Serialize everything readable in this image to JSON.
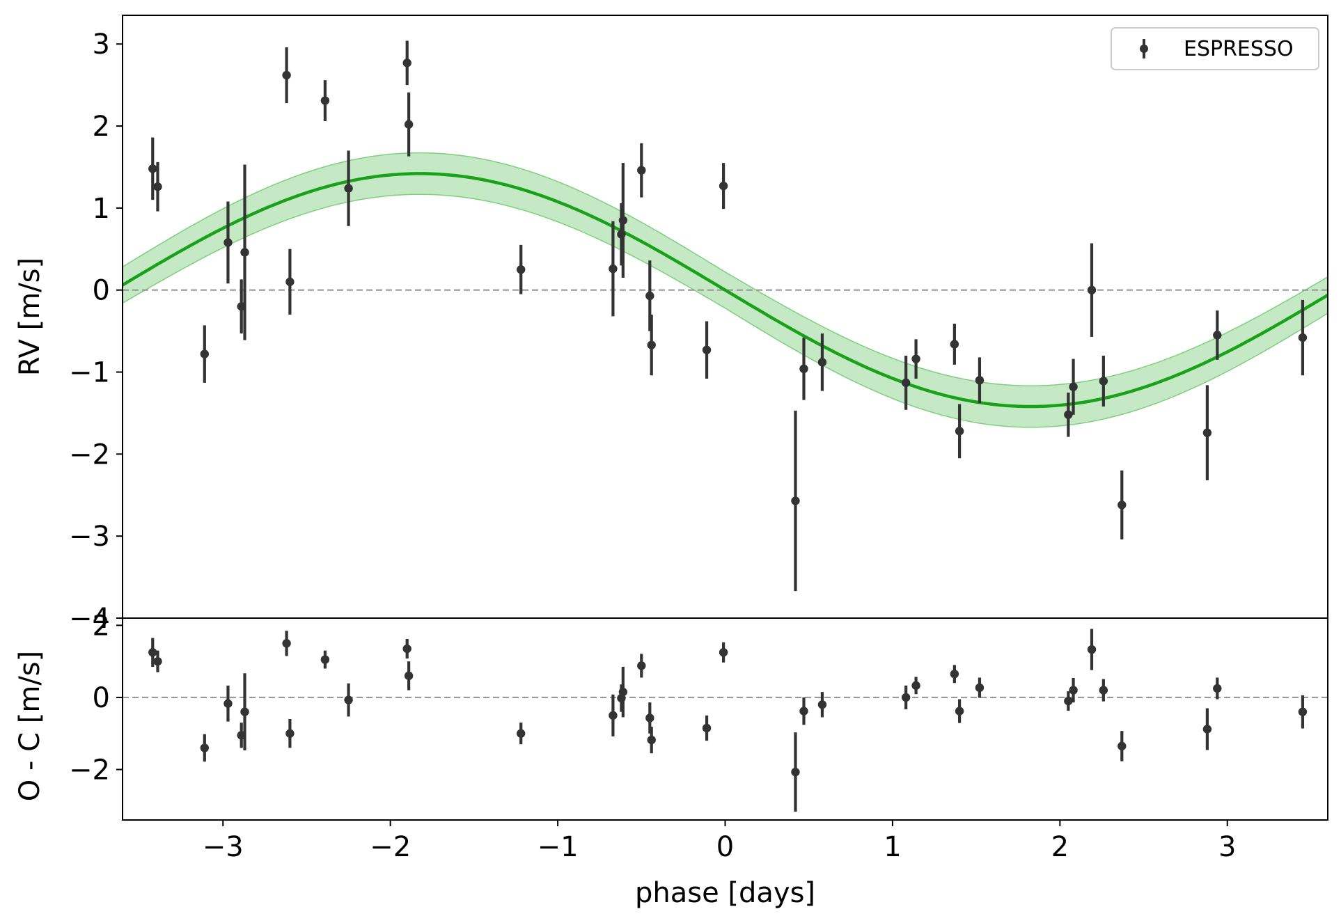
{
  "chart_data": [
    {
      "type": "scatter",
      "panel": "top",
      "ylabel": "RV [m/s]",
      "xlabel": "",
      "xlim": [
        -3.6,
        3.6
      ],
      "ylim": [
        -4,
        3.35
      ],
      "yticks": [
        3,
        2,
        1,
        0,
        -1,
        -2,
        -3,
        -4
      ],
      "ytick_labels": [
        "3",
        "2",
        "1",
        "0",
        "−1",
        "−2",
        "−3",
        "−4"
      ],
      "grid": false,
      "zero_line": true,
      "legend": {
        "position": "top-right",
        "entries": [
          "ESPRESSO"
        ]
      },
      "model": {
        "amplitude": 1.42,
        "period": 7.3,
        "band_halfwidth": 0.22,
        "color": "#1aa11a",
        "band_color": "#9fd99f"
      },
      "series": [
        {
          "name": "ESPRESSO",
          "color": "#333333",
          "points": [
            {
              "x": -3.42,
              "y": 1.48,
              "err": 0.38
            },
            {
              "x": -3.39,
              "y": 1.26,
              "err": 0.3
            },
            {
              "x": -3.11,
              "y": -0.78,
              "err": 0.35
            },
            {
              "x": -2.97,
              "y": 0.58,
              "err": 0.5
            },
            {
              "x": -2.89,
              "y": -0.2,
              "err": 0.33
            },
            {
              "x": -2.87,
              "y": 0.46,
              "err": 1.07
            },
            {
              "x": -2.62,
              "y": 2.62,
              "err": 0.34
            },
            {
              "x": -2.6,
              "y": 0.1,
              "err": 0.4
            },
            {
              "x": -2.39,
              "y": 2.31,
              "err": 0.25
            },
            {
              "x": -2.25,
              "y": 1.24,
              "err": 0.46
            },
            {
              "x": -1.9,
              "y": 2.77,
              "err": 0.27
            },
            {
              "x": -1.89,
              "y": 2.02,
              "err": 0.39
            },
            {
              "x": -1.22,
              "y": 0.25,
              "err": 0.3
            },
            {
              "x": -0.67,
              "y": 0.26,
              "err": 0.58
            },
            {
              "x": -0.62,
              "y": 0.68,
              "err": 0.38
            },
            {
              "x": -0.61,
              "y": 0.85,
              "err": 0.7
            },
            {
              "x": -0.5,
              "y": 1.46,
              "err": 0.33
            },
            {
              "x": -0.45,
              "y": -0.07,
              "err": 0.43
            },
            {
              "x": -0.44,
              "y": -0.67,
              "err": 0.37
            },
            {
              "x": -0.11,
              "y": -0.73,
              "err": 0.35
            },
            {
              "x": -0.01,
              "y": 1.27,
              "err": 0.28
            },
            {
              "x": 0.42,
              "y": -2.57,
              "err": 1.1
            },
            {
              "x": 0.47,
              "y": -0.96,
              "err": 0.38
            },
            {
              "x": 0.58,
              "y": -0.88,
              "err": 0.35
            },
            {
              "x": 1.08,
              "y": -1.13,
              "err": 0.33
            },
            {
              "x": 1.14,
              "y": -0.84,
              "err": 0.24
            },
            {
              "x": 1.37,
              "y": -0.66,
              "err": 0.25
            },
            {
              "x": 1.4,
              "y": -1.72,
              "err": 0.33
            },
            {
              "x": 1.52,
              "y": -1.1,
              "err": 0.28
            },
            {
              "x": 2.05,
              "y": -1.52,
              "err": 0.27
            },
            {
              "x": 2.08,
              "y": -1.18,
              "err": 0.34
            },
            {
              "x": 2.19,
              "y": 0.0,
              "err": 0.57
            },
            {
              "x": 2.26,
              "y": -1.11,
              "err": 0.31
            },
            {
              "x": 2.37,
              "y": -2.62,
              "err": 0.42
            },
            {
              "x": 2.88,
              "y": -1.74,
              "err": 0.58
            },
            {
              "x": 2.94,
              "y": -0.55,
              "err": 0.3
            },
            {
              "x": 3.45,
              "y": -0.58,
              "err": 0.46
            }
          ]
        }
      ]
    },
    {
      "type": "scatter",
      "panel": "bottom",
      "ylabel": "O - C [m/s]",
      "xlabel": "phase [days]",
      "xlim": [
        -3.6,
        3.6
      ],
      "ylim": [
        -3.4,
        2.2
      ],
      "xticks": [
        -3,
        -2,
        -1,
        0,
        1,
        2,
        3
      ],
      "xtick_labels": [
        "−3",
        "−2",
        "−1",
        "0",
        "1",
        "2",
        "3"
      ],
      "yticks": [
        2,
        0,
        -2
      ],
      "ytick_labels": [
        "2",
        "0",
        "−2"
      ],
      "grid": false,
      "zero_line": true,
      "series": [
        {
          "name": "ESPRESSO",
          "color": "#333333",
          "points": [
            {
              "x": -3.42,
              "y": 1.25,
              "err": 0.4
            },
            {
              "x": -3.39,
              "y": 1.0,
              "err": 0.3
            },
            {
              "x": -3.11,
              "y": -1.4,
              "err": 0.38
            },
            {
              "x": -2.97,
              "y": -0.17,
              "err": 0.5
            },
            {
              "x": -2.89,
              "y": -1.05,
              "err": 0.35
            },
            {
              "x": -2.87,
              "y": -0.4,
              "err": 1.07
            },
            {
              "x": -2.62,
              "y": 1.5,
              "err": 0.35
            },
            {
              "x": -2.6,
              "y": -1.0,
              "err": 0.4
            },
            {
              "x": -2.39,
              "y": 1.05,
              "err": 0.25
            },
            {
              "x": -2.25,
              "y": -0.07,
              "err": 0.46
            },
            {
              "x": -1.9,
              "y": 1.35,
              "err": 0.27
            },
            {
              "x": -1.89,
              "y": 0.6,
              "err": 0.4
            },
            {
              "x": -1.22,
              "y": -1.0,
              "err": 0.3
            },
            {
              "x": -0.67,
              "y": -0.5,
              "err": 0.58
            },
            {
              "x": -0.62,
              "y": -0.02,
              "err": 0.38
            },
            {
              "x": -0.61,
              "y": 0.15,
              "err": 0.7
            },
            {
              "x": -0.5,
              "y": 0.88,
              "err": 0.33
            },
            {
              "x": -0.45,
              "y": -0.57,
              "err": 0.43
            },
            {
              "x": -0.44,
              "y": -1.18,
              "err": 0.37
            },
            {
              "x": -0.11,
              "y": -0.85,
              "err": 0.35
            },
            {
              "x": -0.01,
              "y": 1.25,
              "err": 0.28
            },
            {
              "x": 0.42,
              "y": -2.07,
              "err": 1.1
            },
            {
              "x": 0.47,
              "y": -0.38,
              "err": 0.38
            },
            {
              "x": 0.58,
              "y": -0.2,
              "err": 0.35
            },
            {
              "x": 1.08,
              "y": 0.0,
              "err": 0.33
            },
            {
              "x": 1.14,
              "y": 0.33,
              "err": 0.24
            },
            {
              "x": 1.37,
              "y": 0.65,
              "err": 0.25
            },
            {
              "x": 1.4,
              "y": -0.38,
              "err": 0.33
            },
            {
              "x": 1.52,
              "y": 0.27,
              "err": 0.28
            },
            {
              "x": 2.05,
              "y": -0.1,
              "err": 0.27
            },
            {
              "x": 2.08,
              "y": 0.2,
              "err": 0.34
            },
            {
              "x": 2.19,
              "y": 1.33,
              "err": 0.57
            },
            {
              "x": 2.26,
              "y": 0.2,
              "err": 0.31
            },
            {
              "x": 2.37,
              "y": -1.35,
              "err": 0.42
            },
            {
              "x": 2.88,
              "y": -0.88,
              "err": 0.58
            },
            {
              "x": 2.94,
              "y": 0.25,
              "err": 0.3
            },
            {
              "x": 3.45,
              "y": -0.4,
              "err": 0.46
            }
          ]
        }
      ]
    }
  ]
}
